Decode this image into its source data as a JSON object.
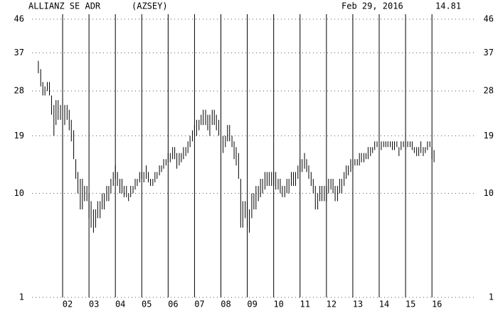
{
  "chart_data": {
    "type": "hilo",
    "title": "ALLIANZ SE ADR",
    "symbol": "(AZSEY)",
    "date": "Feb 29, 2016",
    "last": 14.81,
    "yscale": "sqrt",
    "grid": true,
    "color": "#000000",
    "ylim": [
      1,
      46
    ],
    "yticks": [
      1,
      10,
      19,
      28,
      37,
      46
    ],
    "xlim": [
      2000.84,
      2017.29
    ],
    "xticks": [
      {
        "value": 2002,
        "label": "02"
      },
      {
        "value": 2003,
        "label": "03"
      },
      {
        "value": 2004,
        "label": "04"
      },
      {
        "value": 2005,
        "label": "05"
      },
      {
        "value": 2006,
        "label": "06"
      },
      {
        "value": 2007,
        "label": "07"
      },
      {
        "value": 2008,
        "label": "08"
      },
      {
        "value": 2009,
        "label": "09"
      },
      {
        "value": 2010,
        "label": "10"
      },
      {
        "value": 2011,
        "label": "11"
      },
      {
        "value": 2012,
        "label": "12"
      },
      {
        "value": 2013,
        "label": "13"
      },
      {
        "value": 2014,
        "label": "14"
      },
      {
        "value": 2015,
        "label": "15"
      },
      {
        "value": 2016,
        "label": "16"
      }
    ],
    "x": [
      2001.08,
      2001.17,
      2001.25,
      2001.33,
      2001.42,
      2001.5,
      2001.58,
      2001.67,
      2001.75,
      2001.83,
      2001.92,
      2002,
      2002.08,
      2002.17,
      2002.25,
      2002.33,
      2002.42,
      2002.5,
      2002.58,
      2002.67,
      2002.75,
      2002.83,
      2002.92,
      2003,
      2003.08,
      2003.17,
      2003.25,
      2003.33,
      2003.42,
      2003.5,
      2003.58,
      2003.67,
      2003.75,
      2003.83,
      2003.92,
      2004,
      2004.08,
      2004.17,
      2004.25,
      2004.33,
      2004.42,
      2004.5,
      2004.58,
      2004.67,
      2004.75,
      2004.83,
      2004.92,
      2005,
      2005.08,
      2005.17,
      2005.25,
      2005.33,
      2005.42,
      2005.5,
      2005.58,
      2005.67,
      2005.75,
      2005.83,
      2005.92,
      2006,
      2006.08,
      2006.17,
      2006.25,
      2006.33,
      2006.42,
      2006.5,
      2006.58,
      2006.67,
      2006.75,
      2006.83,
      2006.92,
      2007,
      2007.08,
      2007.17,
      2007.25,
      2007.33,
      2007.42,
      2007.5,
      2007.58,
      2007.67,
      2007.75,
      2007.83,
      2007.92,
      2008,
      2008.08,
      2008.17,
      2008.25,
      2008.33,
      2008.42,
      2008.5,
      2008.58,
      2008.67,
      2008.75,
      2008.83,
      2008.92,
      2009,
      2009.08,
      2009.17,
      2009.25,
      2009.33,
      2009.42,
      2009.5,
      2009.58,
      2009.67,
      2009.75,
      2009.83,
      2009.92,
      2010,
      2010.08,
      2010.17,
      2010.25,
      2010.33,
      2010.42,
      2010.5,
      2010.58,
      2010.67,
      2010.75,
      2010.83,
      2010.92,
      2011,
      2011.08,
      2011.17,
      2011.25,
      2011.33,
      2011.42,
      2011.5,
      2011.58,
      2011.67,
      2011.75,
      2011.83,
      2011.92,
      2012,
      2012.08,
      2012.17,
      2012.25,
      2012.33,
      2012.42,
      2012.5,
      2012.58,
      2012.67,
      2012.75,
      2012.83,
      2012.92,
      2013,
      2013.08,
      2013.17,
      2013.25,
      2013.33,
      2013.42,
      2013.5,
      2013.58,
      2013.67,
      2013.75,
      2013.83,
      2013.92,
      2014,
      2014.08,
      2014.17,
      2014.25,
      2014.33,
      2014.42,
      2014.5,
      2014.58,
      2014.67,
      2014.75,
      2014.83,
      2014.92,
      2015,
      2015.08,
      2015.17,
      2015.25,
      2015.33,
      2015.42,
      2015.5,
      2015.58,
      2015.67,
      2015.75,
      2015.83,
      2015.92,
      2016,
      2016.08
    ],
    "high": [
      35,
      33,
      30,
      29,
      30,
      30,
      27,
      25,
      26,
      26,
      25,
      26,
      25,
      25,
      24,
      22,
      20,
      15,
      13,
      12,
      12,
      11,
      11,
      10,
      9,
      8,
      8,
      9,
      9,
      10,
      10,
      11,
      11,
      12,
      13,
      14,
      13,
      12,
      12,
      11,
      11,
      10,
      11,
      11,
      12,
      12,
      13,
      13,
      13,
      14,
      13,
      12,
      12,
      13,
      13,
      14,
      14,
      15,
      15,
      16,
      16,
      17,
      17,
      16,
      16,
      16,
      17,
      17,
      18,
      19,
      20,
      21,
      22,
      22,
      23,
      24,
      24,
      23,
      23,
      24,
      24,
      23,
      22,
      20,
      19,
      19,
      21,
      21,
      19,
      18,
      17,
      16,
      12,
      9,
      9,
      9,
      8,
      10,
      10,
      11,
      11,
      12,
      12,
      13,
      13,
      13,
      13,
      13,
      13,
      12,
      12,
      11,
      11,
      12,
      12,
      13,
      13,
      13,
      14,
      15,
      15,
      16,
      15,
      14,
      13,
      12,
      11,
      10,
      11,
      11,
      11,
      11,
      12,
      12,
      12,
      11,
      11,
      12,
      12,
      13,
      14,
      14,
      15,
      15,
      15,
      15,
      16,
      16,
      16,
      16,
      17,
      17,
      17,
      18,
      18,
      18,
      18,
      18,
      18,
      18,
      18,
      18,
      18,
      18,
      17,
      18,
      18,
      18,
      18,
      18,
      18,
      17,
      17,
      17,
      18,
      17,
      17,
      18,
      18,
      17,
      16.5
    ],
    "low": [
      32,
      29,
      27,
      27,
      28,
      27,
      23,
      19,
      21,
      22,
      22,
      22,
      21,
      22,
      20,
      18,
      15,
      12,
      10,
      8,
      8,
      9,
      9,
      7,
      6,
      5.5,
      6,
      7,
      7,
      8,
      8,
      9,
      9,
      10,
      11,
      12,
      11,
      10,
      10,
      9.5,
      9.5,
      9,
      9.5,
      10,
      10.5,
      11,
      11.5,
      12,
      11.5,
      12,
      11.5,
      11,
      11,
      11.5,
      12,
      12.5,
      13,
      13.5,
      14,
      14.5,
      14.5,
      15,
      15,
      13.5,
      14,
      14.5,
      15,
      15.5,
      16,
      17,
      18,
      19,
      19,
      20,
      21,
      21,
      21,
      20,
      19,
      21,
      21,
      20,
      19,
      17,
      16,
      17,
      18,
      18,
      17,
      15,
      14,
      12,
      6,
      6,
      7,
      6,
      5.5,
      7,
      8,
      8,
      9,
      9.5,
      10,
      10.5,
      11,
      11,
      11,
      11,
      10.5,
      10.5,
      10,
      9.5,
      9.5,
      10,
      10,
      11,
      11,
      11,
      12,
      13,
      13,
      13.5,
      13,
      12,
      11,
      10,
      8,
      8,
      9,
      9,
      9,
      9,
      10,
      10.5,
      10,
      9,
      9,
      10,
      10,
      11,
      12,
      12.5,
      13,
      13.5,
      14,
      14,
      14,
      14.5,
      14.5,
      15,
      15,
      15.5,
      16,
      16.5,
      17,
      16.5,
      16.5,
      17,
      17,
      17,
      17,
      16.5,
      16.5,
      17,
      15.5,
      16.5,
      17,
      16.5,
      17,
      17,
      16.5,
      16,
      15.5,
      15.5,
      16,
      15.5,
      16,
      16.5,
      17,
      15,
      14.5
    ]
  }
}
